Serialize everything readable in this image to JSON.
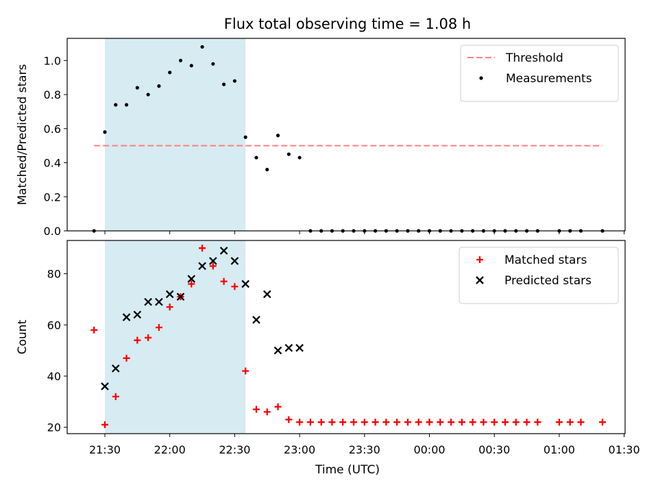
{
  "title": "Flux total observing time = 1.08 h",
  "colors": {
    "shade": "#add8e6",
    "threshold": "#ff7f7f",
    "measurement": "#000000",
    "matched": "#ff0000",
    "predicted": "#000000"
  },
  "x_tick_labels": [
    "21:30",
    "22:00",
    "22:30",
    "23:00",
    "23:30",
    "00:00",
    "00:30",
    "01:00",
    "01:30"
  ],
  "x_label": "Time (UTC)",
  "chart_data": [
    {
      "type": "scatter",
      "ylabel": "Matched/Predicted stars",
      "ylim": [
        0,
        1.13
      ],
      "y_ticks": [
        0,
        0.2,
        0.4,
        0.6,
        0.8,
        1.0
      ],
      "y_tick_labels": [
        "0.0",
        "0.2",
        "0.4",
        "0.6",
        "0.8",
        "1.0"
      ],
      "x_unit": "time of day (UTC)",
      "shaded_region": [
        "21:30",
        "22:35"
      ],
      "threshold": {
        "name": "Threshold",
        "y": 0.5,
        "x_from": "21:25",
        "x_to": "01:20"
      },
      "legend_position": "top-right",
      "series": [
        {
          "name": "Measurements",
          "marker": "dot",
          "points": [
            [
              "21:25",
              0.0
            ],
            [
              "21:30",
              0.58
            ],
            [
              "21:35",
              0.74
            ],
            [
              "21:40",
              0.74
            ],
            [
              "21:45",
              0.84
            ],
            [
              "21:50",
              0.8
            ],
            [
              "21:55",
              0.85
            ],
            [
              "22:00",
              0.93
            ],
            [
              "22:05",
              1.0
            ],
            [
              "22:10",
              0.97
            ],
            [
              "22:15",
              1.08
            ],
            [
              "22:20",
              0.98
            ],
            [
              "22:25",
              0.86
            ],
            [
              "22:30",
              0.88
            ],
            [
              "22:35",
              0.55
            ],
            [
              "22:40",
              0.43
            ],
            [
              "22:45",
              0.36
            ],
            [
              "22:50",
              0.56
            ],
            [
              "22:55",
              0.45
            ],
            [
              "23:00",
              0.43
            ],
            [
              "23:05",
              0
            ],
            [
              "23:10",
              0
            ],
            [
              "23:15",
              0
            ],
            [
              "23:20",
              0
            ],
            [
              "23:25",
              0
            ],
            [
              "23:30",
              0
            ],
            [
              "23:35",
              0
            ],
            [
              "23:40",
              0
            ],
            [
              "23:45",
              0
            ],
            [
              "23:50",
              0
            ],
            [
              "23:55",
              0
            ],
            [
              "00:00",
              0
            ],
            [
              "00:05",
              0
            ],
            [
              "00:10",
              0
            ],
            [
              "00:15",
              0
            ],
            [
              "00:20",
              0
            ],
            [
              "00:25",
              0
            ],
            [
              "00:30",
              0
            ],
            [
              "00:35",
              0
            ],
            [
              "00:40",
              0
            ],
            [
              "00:45",
              0
            ],
            [
              "00:50",
              0
            ],
            [
              "01:00",
              0
            ],
            [
              "01:05",
              0
            ],
            [
              "01:10",
              0
            ],
            [
              "01:20",
              0
            ]
          ]
        }
      ]
    },
    {
      "type": "scatter",
      "ylabel": "Count",
      "ylim": [
        17.5,
        93
      ],
      "y_ticks": [
        20,
        40,
        60,
        80
      ],
      "y_tick_labels": [
        "20",
        "40",
        "60",
        "80"
      ],
      "x_unit": "time of day (UTC)",
      "shaded_region": [
        "21:30",
        "22:35"
      ],
      "legend_position": "top-right",
      "series": [
        {
          "name": "Matched stars",
          "marker": "plus",
          "points": [
            [
              "21:25",
              58
            ],
            [
              "21:30",
              21
            ],
            [
              "21:35",
              32
            ],
            [
              "21:40",
              47
            ],
            [
              "21:45",
              54
            ],
            [
              "21:50",
              55
            ],
            [
              "21:55",
              59
            ],
            [
              "22:00",
              67
            ],
            [
              "22:05",
              71
            ],
            [
              "22:10",
              76
            ],
            [
              "22:15",
              90
            ],
            [
              "22:20",
              83
            ],
            [
              "22:25",
              77
            ],
            [
              "22:30",
              75
            ],
            [
              "22:35",
              42
            ],
            [
              "22:40",
              27
            ],
            [
              "22:45",
              26
            ],
            [
              "22:50",
              28
            ],
            [
              "22:55",
              23
            ],
            [
              "23:00",
              22
            ],
            [
              "23:05",
              22
            ],
            [
              "23:10",
              22
            ],
            [
              "23:15",
              22
            ],
            [
              "23:20",
              22
            ],
            [
              "23:25",
              22
            ],
            [
              "23:30",
              22
            ],
            [
              "23:35",
              22
            ],
            [
              "23:40",
              22
            ],
            [
              "23:45",
              22
            ],
            [
              "23:50",
              22
            ],
            [
              "23:55",
              22
            ],
            [
              "00:00",
              22
            ],
            [
              "00:05",
              22
            ],
            [
              "00:10",
              22
            ],
            [
              "00:15",
              22
            ],
            [
              "00:20",
              22
            ],
            [
              "00:25",
              22
            ],
            [
              "00:30",
              22
            ],
            [
              "00:35",
              22
            ],
            [
              "00:40",
              22
            ],
            [
              "00:45",
              22
            ],
            [
              "00:50",
              22
            ],
            [
              "01:00",
              22
            ],
            [
              "01:05",
              22
            ],
            [
              "01:10",
              22
            ],
            [
              "01:20",
              22
            ]
          ]
        },
        {
          "name": "Predicted stars",
          "marker": "x",
          "points": [
            [
              "21:30",
              36
            ],
            [
              "21:35",
              43
            ],
            [
              "21:40",
              63
            ],
            [
              "21:45",
              64
            ],
            [
              "21:50",
              69
            ],
            [
              "21:55",
              69
            ],
            [
              "22:00",
              72
            ],
            [
              "22:05",
              71
            ],
            [
              "22:10",
              78
            ],
            [
              "22:15",
              83
            ],
            [
              "22:20",
              85
            ],
            [
              "22:25",
              89
            ],
            [
              "22:30",
              85
            ],
            [
              "22:35",
              76
            ],
            [
              "22:40",
              62
            ],
            [
              "22:45",
              72
            ],
            [
              "22:50",
              50
            ],
            [
              "22:55",
              51
            ],
            [
              "23:00",
              51
            ]
          ]
        }
      ]
    }
  ]
}
